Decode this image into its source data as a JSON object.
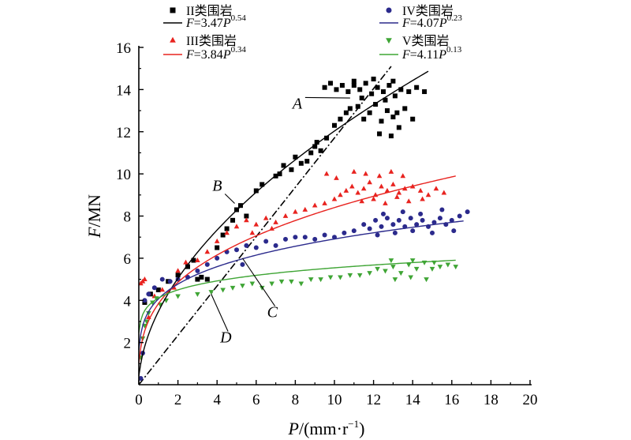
{
  "chart_data": {
    "type": "scatter",
    "xlabel": {
      "var": "P",
      "unit": "/(mm·r",
      "sup": "−1",
      "close": ")"
    },
    "ylabel": {
      "var": "F",
      "unit": "/MN"
    },
    "xlim": [
      0,
      20
    ],
    "ylim": [
      0,
      16
    ],
    "xticks": [
      "0",
      "2",
      "4",
      "6",
      "8",
      "10",
      "12",
      "14",
      "16",
      "18",
      "20"
    ],
    "yticks": [
      "2",
      "4",
      "6",
      "8",
      "10",
      "12",
      "14",
      "16"
    ],
    "grid": false,
    "legend_position": "top",
    "series": [
      {
        "name": "II类围岩",
        "color": "#000000",
        "marker": "square",
        "fit": {
          "a": 3.47,
          "b": 0.54,
          "a_text": "3.47",
          "b_text": "0.54",
          "x_range": [
            0,
            14.8
          ]
        },
        "points": [
          [
            0.3,
            3.9
          ],
          [
            0.6,
            4.3
          ],
          [
            1.0,
            4.5
          ],
          [
            1.5,
            4.9
          ],
          [
            2.0,
            5.2
          ],
          [
            2.5,
            5.6
          ],
          [
            2.8,
            5.9
          ],
          [
            3.0,
            5.0
          ],
          [
            3.2,
            5.1
          ],
          [
            3.5,
            5.0
          ],
          [
            4.0,
            6.5
          ],
          [
            4.3,
            7.1
          ],
          [
            4.5,
            7.4
          ],
          [
            4.8,
            7.8
          ],
          [
            5.0,
            8.3
          ],
          [
            5.2,
            8.5
          ],
          [
            5.5,
            8.0
          ],
          [
            6.0,
            9.2
          ],
          [
            6.3,
            9.5
          ],
          [
            7.0,
            9.9
          ],
          [
            7.4,
            10.4
          ],
          [
            7.8,
            10.2
          ],
          [
            8.0,
            10.8
          ],
          [
            8.3,
            10.5
          ],
          [
            8.6,
            10.6
          ],
          [
            9.0,
            11.3
          ],
          [
            9.3,
            11.1
          ],
          [
            9.6,
            11.7
          ],
          [
            10.0,
            12.3
          ],
          [
            10.3,
            12.6
          ],
          [
            10.6,
            12.9
          ],
          [
            10.8,
            13.1
          ],
          [
            9.5,
            14.1
          ],
          [
            9.8,
            14.3
          ],
          [
            10.1,
            14.0
          ],
          [
            10.4,
            14.2
          ],
          [
            10.7,
            13.9
          ],
          [
            11.0,
            14.2
          ],
          [
            11.3,
            14.0
          ],
          [
            11.6,
            14.3
          ],
          [
            11.9,
            13.8
          ],
          [
            12.2,
            14.1
          ],
          [
            12.5,
            13.9
          ],
          [
            12.8,
            14.2
          ],
          [
            13.1,
            13.7
          ],
          [
            13.4,
            14.0
          ],
          [
            13.8,
            13.9
          ],
          [
            14.2,
            14.1
          ],
          [
            14.6,
            13.9
          ],
          [
            11.2,
            13.2
          ],
          [
            11.5,
            12.6
          ],
          [
            11.8,
            12.9
          ],
          [
            12.1,
            13.3
          ],
          [
            12.4,
            12.5
          ],
          [
            12.7,
            13.0
          ],
          [
            13.0,
            12.7
          ],
          [
            13.3,
            12.2
          ],
          [
            13.6,
            13.1
          ],
          [
            14.0,
            12.6
          ],
          [
            11.0,
            14.4
          ],
          [
            12.0,
            14.5
          ],
          [
            13.0,
            14.4
          ],
          [
            12.3,
            11.9
          ],
          [
            12.9,
            11.8
          ],
          [
            7.2,
            10.0
          ],
          [
            8.8,
            11.0
          ],
          [
            9.1,
            11.5
          ],
          [
            13.2,
            12.9
          ],
          [
            12.6,
            13.5
          ],
          [
            11.4,
            13.6
          ]
        ]
      },
      {
        "name": "III类围岩",
        "color": "#e8231f",
        "marker": "triangle-up",
        "fit": {
          "a": 3.84,
          "b": 0.34,
          "a_text": "3.84",
          "b_text": "0.34",
          "x_range": [
            0,
            16.2
          ]
        },
        "points": [
          [
            0.1,
            4.8
          ],
          [
            0.2,
            4.9
          ],
          [
            0.3,
            5.0
          ],
          [
            0.5,
            3.2
          ],
          [
            0.8,
            4.2
          ],
          [
            1.2,
            4.5
          ],
          [
            1.8,
            4.6
          ],
          [
            2.0,
            5.4
          ],
          [
            2.4,
            5.8
          ],
          [
            3.0,
            5.9
          ],
          [
            3.5,
            6.3
          ],
          [
            4.0,
            6.8
          ],
          [
            4.5,
            7.2
          ],
          [
            5.0,
            7.5
          ],
          [
            5.5,
            7.8
          ],
          [
            6.0,
            7.6
          ],
          [
            6.5,
            7.9
          ],
          [
            7.0,
            7.7
          ],
          [
            7.5,
            8.0
          ],
          [
            8.0,
            8.2
          ],
          [
            8.5,
            8.3
          ],
          [
            9.0,
            8.5
          ],
          [
            9.5,
            8.6
          ],
          [
            10.0,
            8.8
          ],
          [
            10.3,
            9.0
          ],
          [
            10.6,
            9.2
          ],
          [
            10.9,
            9.4
          ],
          [
            11.2,
            9.1
          ],
          [
            11.5,
            9.3
          ],
          [
            11.8,
            9.6
          ],
          [
            12.1,
            9.0
          ],
          [
            12.4,
            9.4
          ],
          [
            12.7,
            9.2
          ],
          [
            13.0,
            9.5
          ],
          [
            13.3,
            9.1
          ],
          [
            13.6,
            9.3
          ],
          [
            14.0,
            9.4
          ],
          [
            14.4,
            9.2
          ],
          [
            14.8,
            9.0
          ],
          [
            15.2,
            9.3
          ],
          [
            15.6,
            9.1
          ],
          [
            11.0,
            10.1
          ],
          [
            11.6,
            10.0
          ],
          [
            12.3,
            9.9
          ],
          [
            12.9,
            10.1
          ],
          [
            13.5,
            9.9
          ],
          [
            11.4,
            8.7
          ],
          [
            12.0,
            8.8
          ],
          [
            12.6,
            8.6
          ],
          [
            13.2,
            8.9
          ],
          [
            13.8,
            8.7
          ],
          [
            14.5,
            8.8
          ],
          [
            10.1,
            9.8
          ],
          [
            9.6,
            10.0
          ],
          [
            6.8,
            7.4
          ],
          [
            5.8,
            7.2
          ]
        ]
      },
      {
        "name": "IV类围岩",
        "color": "#2b2a8c",
        "marker": "circle",
        "fit": {
          "a": 4.07,
          "b": 0.23,
          "a_text": "4.07",
          "b_text": "0.23",
          "x_range": [
            0,
            16.6
          ]
        },
        "points": [
          [
            0.1,
            0.3
          ],
          [
            0.2,
            1.5
          ],
          [
            0.3,
            4.0
          ],
          [
            0.5,
            4.3
          ],
          [
            0.8,
            4.6
          ],
          [
            1.2,
            5.0
          ],
          [
            1.6,
            4.9
          ],
          [
            2.0,
            5.0
          ],
          [
            2.5,
            5.1
          ],
          [
            3.0,
            5.4
          ],
          [
            3.5,
            5.7
          ],
          [
            4.0,
            6.0
          ],
          [
            4.5,
            6.3
          ],
          [
            5.0,
            6.4
          ],
          [
            5.3,
            5.7
          ],
          [
            5.5,
            6.6
          ],
          [
            6.0,
            6.5
          ],
          [
            6.5,
            6.8
          ],
          [
            7.0,
            6.6
          ],
          [
            7.5,
            6.9
          ],
          [
            8.0,
            7.0
          ],
          [
            8.5,
            7.0
          ],
          [
            9.0,
            6.9
          ],
          [
            9.5,
            7.1
          ],
          [
            10.0,
            7.0
          ],
          [
            10.5,
            7.2
          ],
          [
            11.0,
            7.3
          ],
          [
            11.5,
            7.6
          ],
          [
            11.8,
            7.4
          ],
          [
            12.1,
            7.8
          ],
          [
            12.4,
            7.5
          ],
          [
            12.7,
            7.9
          ],
          [
            13.0,
            7.6
          ],
          [
            13.3,
            7.8
          ],
          [
            13.6,
            7.5
          ],
          [
            13.9,
            7.9
          ],
          [
            14.2,
            7.6
          ],
          [
            14.5,
            7.8
          ],
          [
            14.8,
            7.5
          ],
          [
            15.1,
            7.7
          ],
          [
            15.4,
            7.9
          ],
          [
            15.7,
            7.6
          ],
          [
            16.0,
            7.8
          ],
          [
            16.4,
            8.0
          ],
          [
            16.8,
            8.2
          ],
          [
            12.2,
            7.1
          ],
          [
            13.1,
            7.2
          ],
          [
            14.0,
            7.3
          ],
          [
            15.0,
            7.2
          ],
          [
            16.1,
            7.3
          ],
          [
            12.5,
            8.1
          ],
          [
            13.5,
            8.2
          ],
          [
            14.4,
            8.1
          ],
          [
            15.5,
            8.3
          ]
        ]
      },
      {
        "name": "V类围岩",
        "color": "#3fa535",
        "marker": "triangle-down",
        "fit": {
          "a": 4.11,
          "b": 0.13,
          "a_text": "4.11",
          "b_text": "0.13",
          "x_range": [
            0,
            16.2
          ]
        },
        "points": [
          [
            0.1,
            1.3
          ],
          [
            0.2,
            2.2
          ],
          [
            0.3,
            2.8
          ],
          [
            0.4,
            3.0
          ],
          [
            0.5,
            3.4
          ],
          [
            0.7,
            3.9
          ],
          [
            0.9,
            4.1
          ],
          [
            1.1,
            3.8
          ],
          [
            1.4,
            4.0
          ],
          [
            2.0,
            4.2
          ],
          [
            3.0,
            4.3
          ],
          [
            3.7,
            4.4
          ],
          [
            4.3,
            4.5
          ],
          [
            4.8,
            4.6
          ],
          [
            5.3,
            4.7
          ],
          [
            5.8,
            4.8
          ],
          [
            6.3,
            4.6
          ],
          [
            6.8,
            4.8
          ],
          [
            7.3,
            4.9
          ],
          [
            7.8,
            4.9
          ],
          [
            8.3,
            4.8
          ],
          [
            8.8,
            5.0
          ],
          [
            9.3,
            5.0
          ],
          [
            9.8,
            5.1
          ],
          [
            10.3,
            5.1
          ],
          [
            10.8,
            5.2
          ],
          [
            11.3,
            5.2
          ],
          [
            11.8,
            5.3
          ],
          [
            12.2,
            5.5
          ],
          [
            12.6,
            5.4
          ],
          [
            13.0,
            5.6
          ],
          [
            13.4,
            5.3
          ],
          [
            13.8,
            5.7
          ],
          [
            14.2,
            5.5
          ],
          [
            14.6,
            5.8
          ],
          [
            15.0,
            5.5
          ],
          [
            15.4,
            5.6
          ],
          [
            15.8,
            5.7
          ],
          [
            16.2,
            5.6
          ],
          [
            13.1,
            5.0
          ],
          [
            13.9,
            5.1
          ],
          [
            14.7,
            5.0
          ],
          [
            12.9,
            5.9
          ],
          [
            14.0,
            5.9
          ],
          [
            15.1,
            5.8
          ]
        ]
      }
    ],
    "reference_line": {
      "style": "dash-dot",
      "from": [
        0,
        0
      ],
      "to": [
        12.9,
        15.1
      ]
    },
    "annotations": [
      {
        "label": "A",
        "text_at": [
          8.1,
          13.1
        ],
        "point_to": [
          10.8,
          13.6
        ]
      },
      {
        "label": "B",
        "text_at": [
          4.0,
          9.2
        ],
        "point_to": [
          4.9,
          8.6
        ]
      },
      {
        "label": "C",
        "text_at": [
          6.8,
          3.2
        ],
        "point_to": [
          5.3,
          6.0
        ]
      },
      {
        "label": "D",
        "text_at": [
          4.4,
          2.0
        ],
        "point_to": [
          3.7,
          4.3
        ]
      }
    ]
  }
}
